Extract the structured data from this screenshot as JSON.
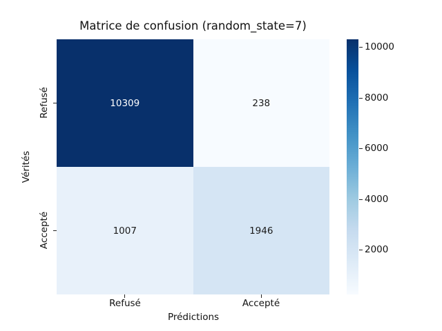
{
  "figure": {
    "background_color": "#ffffff",
    "text_color": "#111111"
  },
  "chart_data": {
    "type": "heatmap",
    "title": "Matrice de confusion (random_state=7)",
    "xlabel": "Prédictions",
    "ylabel": "Vérités",
    "x_tick_labels": [
      "Refusé",
      "Accepté"
    ],
    "y_tick_labels": [
      "Refusé",
      "Accepté"
    ],
    "values": [
      [
        10309,
        238
      ],
      [
        1007,
        1946
      ]
    ],
    "vmin": 238,
    "vmax": 10309,
    "colormap": "Blues",
    "colorbar_ticks": [
      2000,
      4000,
      6000,
      8000,
      10000
    ],
    "cell_colors": [
      [
        "#08306b",
        "#f7fbff"
      ],
      [
        "#e8f1fa",
        "#d5e5f4"
      ]
    ],
    "annot_colors": [
      [
        "#ffffff",
        "#1a1a1a"
      ],
      [
        "#1a1a1a",
        "#1a1a1a"
      ]
    ],
    "colormap_stops": [
      "#f7fbff",
      "#deebf7",
      "#c6dbef",
      "#9ecae1",
      "#6baed6",
      "#4292c6",
      "#2171b5",
      "#08519c",
      "#08306b"
    ],
    "legend_position": "right-colorbar",
    "grid": false
  }
}
